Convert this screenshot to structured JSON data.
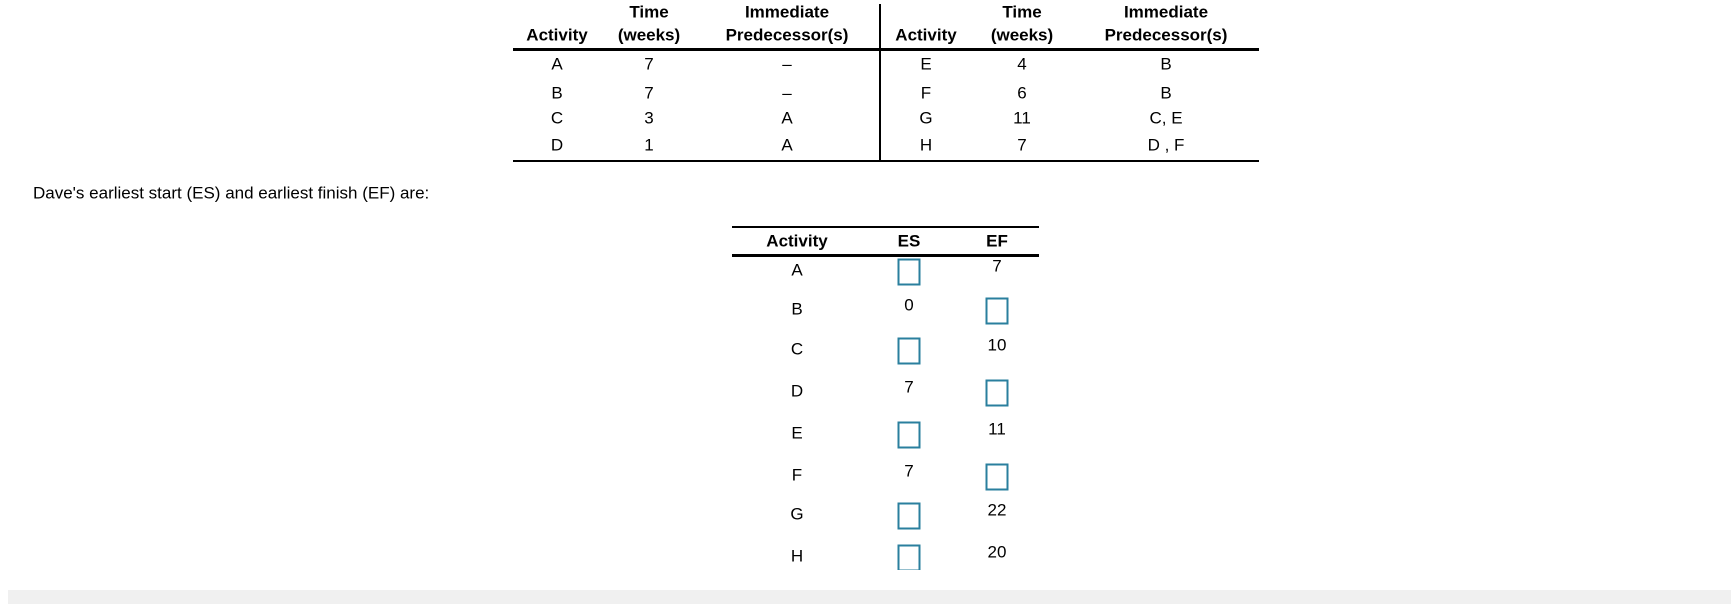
{
  "table1": {
    "left": {
      "headers": [
        [
          "Activity"
        ],
        [
          "Time",
          "(weeks)"
        ],
        [
          "Immediate",
          "Predecessor(s)"
        ]
      ],
      "rows": [
        [
          "A",
          7,
          "–"
        ],
        [
          "B",
          7,
          "–"
        ],
        [
          "C",
          3,
          "A"
        ],
        [
          "D",
          1,
          "A"
        ]
      ]
    },
    "right": {
      "headers": [
        [
          "Activity"
        ],
        [
          "Time",
          "(weeks)"
        ],
        [
          "Immediate",
          "Predecessor(s)"
        ]
      ],
      "rows": [
        [
          "E",
          4,
          "B"
        ],
        [
          "F",
          6,
          "B"
        ],
        [
          "G",
          11,
          "C, E"
        ],
        [
          "H",
          7,
          "D , F"
        ]
      ]
    }
  },
  "prompt": "Dave's earliest start (ES) and earliest finish (EF) are:",
  "table2": {
    "headers": [
      "Activity",
      "ES",
      "EF"
    ],
    "rows": [
      [
        "A",
        null,
        7
      ],
      [
        "B",
        0,
        null
      ],
      [
        "C",
        null,
        10
      ],
      [
        "D",
        7,
        null
      ],
      [
        "E",
        null,
        11
      ],
      [
        "F",
        7,
        null
      ],
      [
        "G",
        null,
        22
      ],
      [
        "H",
        null,
        20
      ]
    ]
  }
}
